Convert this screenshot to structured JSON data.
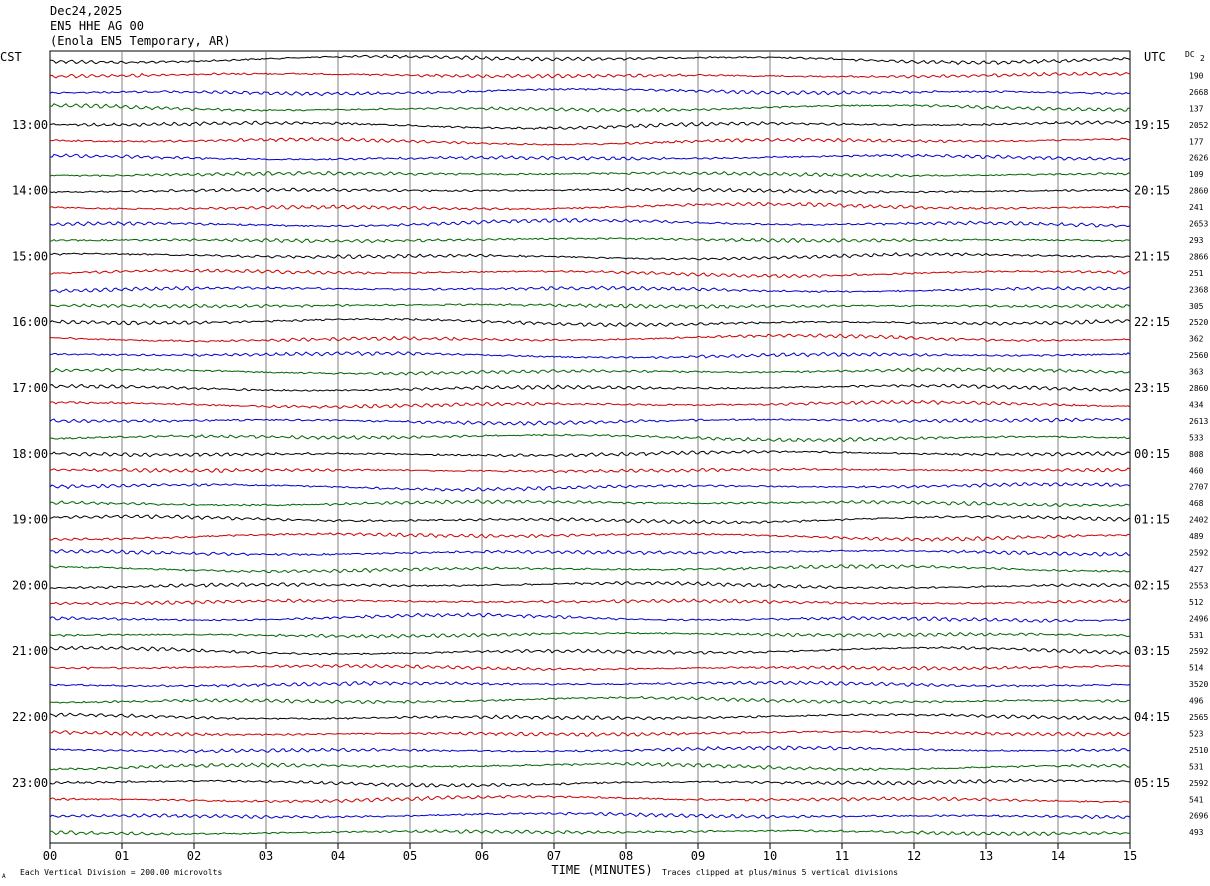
{
  "header": {
    "date": "Dec24,2025",
    "channel": "EN5 HHE AG 00",
    "station": "(Enola EN5 Temporary, AR)"
  },
  "left_tz": "CST",
  "right_tz": "UTC",
  "dc_label": "DC",
  "dc_first": "2",
  "footer": {
    "xlabel": "TIME (MINUTES)",
    "scale": "Each Vertical Division =  200.00 microvolts",
    "clip": "Traces clipped at plus/minus 5 vertical divisions",
    "corner": "A"
  },
  "colors": {
    "trace_cycle": [
      "#000000",
      "#cc0000",
      "#0000cc",
      "#006600"
    ],
    "grid": "#808080"
  },
  "chart_data": {
    "type": "line",
    "title": "",
    "xlabel": "TIME (MINUTES)",
    "ylabel": "",
    "x_range": [
      0,
      15
    ],
    "x_ticks": [
      "00",
      "01",
      "02",
      "03",
      "04",
      "05",
      "06",
      "07",
      "08",
      "09",
      "10",
      "11",
      "12",
      "13",
      "14",
      "15"
    ],
    "traces_per_hour": 4,
    "trace_count": 48,
    "left_hour_labels": [
      "13:00",
      "14:00",
      "15:00",
      "16:00",
      "17:00",
      "18:00",
      "19:00",
      "20:00",
      "21:00",
      "22:00",
      "23:00"
    ],
    "right_hour_labels": [
      "19:15",
      "20:15",
      "21:15",
      "22:15",
      "23:15",
      "00:15",
      "01:15",
      "02:15",
      "03:15",
      "04:15",
      "05:15"
    ],
    "dc_offsets": [
      "190",
      "2668",
      "137",
      "2052",
      "177",
      "2626",
      "109",
      "2860",
      "241",
      "2653",
      "293",
      "2866",
      "251",
      "2368",
      "305",
      "2520",
      "362",
      "2560",
      "363",
      "2860",
      "434",
      "2613",
      "533",
      "808",
      "460",
      "2707",
      "468",
      "2402",
      "489",
      "2592",
      "427",
      "2553",
      "512",
      "2496",
      "531",
      "2592",
      "514",
      "3520",
      "496",
      "2565",
      "523",
      "2510",
      "531",
      "2592",
      "541",
      "2696",
      "493"
    ],
    "grid": true,
    "legend": "none"
  }
}
